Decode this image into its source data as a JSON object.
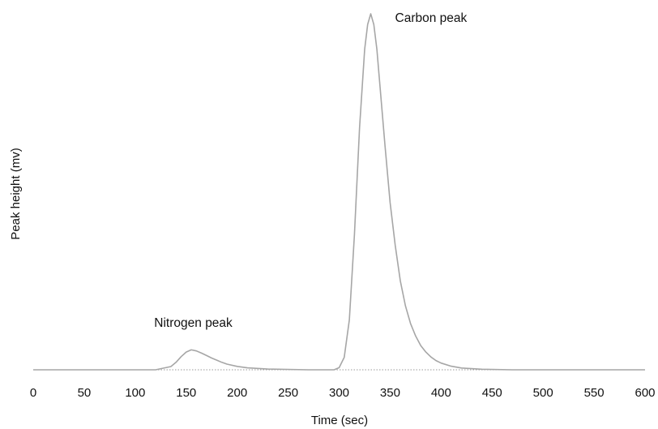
{
  "chart_data": {
    "type": "line",
    "xlabel": "Time (sec)",
    "ylabel": "Peak height (mv)",
    "x_ticks": [
      {
        "value": 0,
        "label": "0"
      },
      {
        "value": 50,
        "label": "50"
      },
      {
        "value": 100,
        "label": "100"
      },
      {
        "value": 150,
        "label": "150"
      },
      {
        "value": 200,
        "label": "200"
      },
      {
        "value": 250,
        "label": "250"
      },
      {
        "value": 300,
        "label": "300"
      },
      {
        "value": 350,
        "label": "350"
      },
      {
        "value": 400,
        "label": "400"
      },
      {
        "value": 450,
        "label": "450"
      },
      {
        "value": 500,
        "label": "500"
      },
      {
        "value": 550,
        "label": "550"
      },
      {
        "value": 600,
        "label": "600"
      }
    ],
    "xlim": [
      0,
      600
    ],
    "ylim": [
      0,
      100
    ],
    "grid": false,
    "baseline": {
      "style": "dotted",
      "y": 0
    },
    "annotations": [
      {
        "text": "Nitrogen peak",
        "x": 157,
        "y": 6.2
      },
      {
        "text": "Carbon peak",
        "x": 331,
        "y": 100
      }
    ],
    "series": [
      {
        "name": "",
        "color": "#a6a6a6",
        "x": [
          0,
          120,
          135,
          140,
          145,
          150,
          155,
          160,
          165,
          170,
          175,
          180,
          185,
          190,
          200,
          210,
          230,
          270,
          295,
          300,
          305,
          310,
          315,
          320,
          325,
          328,
          331,
          334,
          337,
          340,
          345,
          350,
          355,
          360,
          365,
          370,
          375,
          380,
          385,
          390,
          395,
          400,
          410,
          420,
          440,
          470,
          600
        ],
        "y": [
          0,
          0,
          0.9,
          2.1,
          3.7,
          5.0,
          5.6,
          5.3,
          4.7,
          4.0,
          3.3,
          2.7,
          2.1,
          1.6,
          0.95,
          0.55,
          0.2,
          0,
          0,
          0.6,
          3.5,
          14,
          38,
          68,
          90,
          97,
          100,
          97,
          90,
          80,
          63,
          47,
          35,
          25,
          18,
          13,
          9.5,
          6.8,
          5.0,
          3.6,
          2.6,
          1.9,
          1.0,
          0.5,
          0.15,
          0,
          0
        ]
      }
    ]
  }
}
